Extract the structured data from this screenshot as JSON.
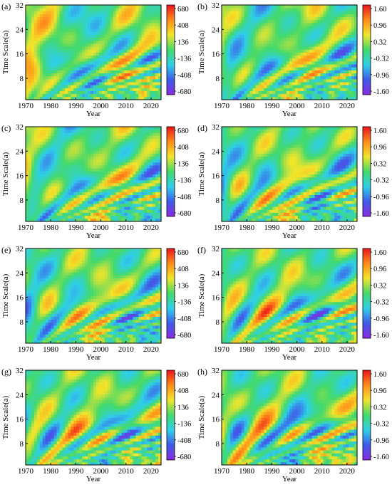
{
  "panels": [
    {
      "label": "(a)",
      "colorbar": [
        "680",
        "408",
        "136",
        "-136",
        "-408",
        "-680"
      ]
    },
    {
      "label": "(b)",
      "colorbar": [
        "1.60",
        "0.96",
        "0.32",
        "-0.32",
        "-0.96",
        "-1.60"
      ]
    },
    {
      "label": "(c)",
      "colorbar": [
        "680",
        "408",
        "136",
        "-136",
        "-408",
        "-680"
      ]
    },
    {
      "label": "(d)",
      "colorbar": [
        "1.60",
        "0.96",
        "0.32",
        "-0.32",
        "-0.96",
        "-1.60"
      ]
    },
    {
      "label": "(e)",
      "colorbar": [
        "680",
        "408",
        "136",
        "-136",
        "-408",
        "-680"
      ]
    },
    {
      "label": "(f)",
      "colorbar": [
        "1.60",
        "0.96",
        "0.32",
        "-0.32",
        "-0.96",
        "-1.60"
      ]
    },
    {
      "label": "(g)",
      "colorbar": [
        "680",
        "408",
        "136",
        "-136",
        "-408",
        "-680"
      ]
    },
    {
      "label": "(h)",
      "colorbar": [
        "1.60",
        "0.96",
        "0.32",
        "-0.32",
        "-0.96",
        "-1.60"
      ]
    }
  ],
  "chart_data": {
    "type": "heatmap",
    "xlabel": "Year",
    "ylabel": "Time Scale(a)",
    "x_ticks": [
      "1970",
      "1980",
      "1990",
      "2000",
      "2010",
      "2020"
    ],
    "y_ticks": [
      "8",
      "16",
      "24",
      "32"
    ],
    "xlim": [
      1970,
      2024
    ],
    "ylim": [
      1,
      32
    ],
    "colorscale": [
      "#8a2be2",
      "#3f5be8",
      "#2fd0e8",
      "#43d96b",
      "#f2e52a",
      "#ff8c1a",
      "#e8141c"
    ]
  }
}
